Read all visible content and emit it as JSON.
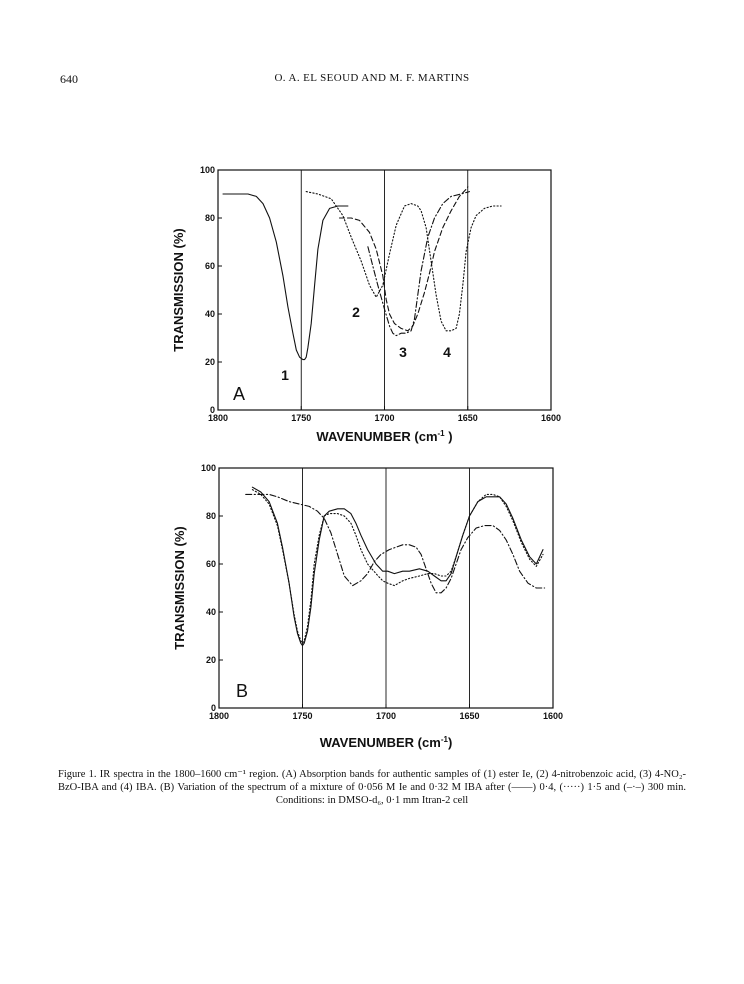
{
  "header": {
    "page_number": "640",
    "running_head": "O. A. EL SEOUD AND M. F. MARTINS"
  },
  "chart_data": [
    {
      "type": "line",
      "panel_label": "A",
      "xlabel": "WAVENUMBER (cm",
      "xlabel_sup": "-1",
      "xlabel_tail": " )",
      "ylabel": "TRANSMISSION (%)",
      "xlim": [
        1800,
        1600
      ],
      "ylim": [
        0,
        100
      ],
      "x_ticks": [
        "1800",
        "1750",
        "1700",
        "1650",
        "1600"
      ],
      "y_ticks": [
        "0",
        "20",
        "40",
        "60",
        "80",
        "100"
      ],
      "vertical_gridlines": [
        1750,
        1700,
        1650
      ],
      "series": [
        {
          "name": "1",
          "style": "solid",
          "x": [
            1797,
            1790,
            1782,
            1777,
            1773,
            1769,
            1765,
            1761,
            1758,
            1755,
            1753,
            1751,
            1749,
            1748,
            1747,
            1746,
            1744,
            1742,
            1740,
            1737,
            1733,
            1728,
            1722
          ],
          "y": [
            90,
            90,
            90,
            89,
            86,
            80,
            70,
            56,
            43,
            32,
            25,
            22,
            21,
            21,
            22,
            26,
            36,
            52,
            67,
            79,
            84,
            85,
            85
          ]
        },
        {
          "name": "2",
          "style": "dashed",
          "x": [
            1727,
            1720,
            1715,
            1709,
            1705,
            1701,
            1699,
            1697,
            1694,
            1690,
            1686,
            1683,
            1680,
            1676,
            1673,
            1670,
            1665,
            1660,
            1655,
            1651,
            1650
          ],
          "y": [
            80,
            80,
            79,
            74,
            67,
            56,
            46,
            40,
            36,
            34,
            33,
            35,
            40,
            49,
            57,
            66,
            76,
            83,
            89,
            92,
            93
          ]
        },
        {
          "name": "3",
          "style": "dash-dot",
          "x": [
            1710,
            1707,
            1704,
            1700,
            1697,
            1695,
            1693,
            1690,
            1687,
            1684,
            1682,
            1680,
            1678,
            1674,
            1670,
            1665,
            1660,
            1654,
            1649
          ],
          "y": [
            68,
            60,
            52,
            42,
            35,
            32,
            31,
            32,
            32,
            33,
            38,
            48,
            58,
            72,
            80,
            86,
            89,
            90,
            91
          ]
        },
        {
          "name": "4",
          "style": "dotted",
          "x": [
            1747,
            1740,
            1732,
            1725,
            1720,
            1714,
            1709,
            1705,
            1701,
            1697,
            1693,
            1688,
            1684,
            1680,
            1678,
            1675,
            1672,
            1669,
            1666,
            1663,
            1660,
            1657,
            1655,
            1653,
            1651,
            1648,
            1645,
            1640,
            1635,
            1630
          ],
          "y": [
            91,
            90,
            88,
            81,
            72,
            62,
            52,
            47,
            52,
            65,
            77,
            85,
            86,
            85,
            83,
            76,
            62,
            48,
            37,
            33,
            33,
            34,
            40,
            52,
            66,
            76,
            81,
            84,
            85,
            85
          ]
        }
      ],
      "annotations": [
        "1",
        "2",
        "3",
        "4"
      ]
    },
    {
      "type": "line",
      "panel_label": "B",
      "xlabel": "WAVENUMBER (cm",
      "xlabel_sup": "-1",
      "xlabel_tail": ")",
      "ylabel": "TRANSMISSION (%)",
      "xlim": [
        1800,
        1600
      ],
      "ylim": [
        0,
        100
      ],
      "x_ticks": [
        "1800",
        "1750",
        "1700",
        "1650",
        "1600"
      ],
      "y_ticks": [
        "0",
        "20",
        "40",
        "60",
        "80",
        "100"
      ],
      "vertical_gridlines": [
        1750,
        1700,
        1650
      ],
      "series": [
        {
          "style": "solid",
          "x": [
            1780,
            1775,
            1770,
            1765,
            1762,
            1758,
            1755,
            1753,
            1751,
            1750,
            1749,
            1747,
            1745,
            1743,
            1740,
            1737,
            1734,
            1729,
            1725,
            1721,
            1718,
            1715,
            1711,
            1706,
            1702,
            1699,
            1695,
            1690,
            1686,
            1680,
            1675,
            1671,
            1667,
            1664,
            1661,
            1658,
            1654,
            1650,
            1645,
            1640,
            1636,
            1632,
            1628,
            1624,
            1619,
            1614,
            1610,
            1606
          ],
          "y": [
            92,
            90,
            86,
            77,
            67,
            52,
            38,
            31,
            27,
            26,
            27,
            32,
            42,
            56,
            70,
            80,
            82,
            83,
            83,
            81,
            77,
            72,
            66,
            60,
            57,
            57,
            56,
            57,
            57,
            58,
            57,
            55,
            53,
            53,
            56,
            63,
            72,
            80,
            86,
            88,
            88,
            88,
            85,
            79,
            70,
            63,
            60,
            66
          ]
        },
        {
          "style": "dotted",
          "x": [
            1780,
            1775,
            1770,
            1765,
            1762,
            1758,
            1755,
            1753,
            1751,
            1750,
            1749,
            1747,
            1745,
            1743,
            1740,
            1737,
            1734,
            1729,
            1725,
            1721,
            1718,
            1715,
            1711,
            1706,
            1702,
            1699,
            1695,
            1690,
            1686,
            1680,
            1675,
            1671,
            1667,
            1664,
            1661,
            1658,
            1654,
            1650,
            1645,
            1640,
            1636,
            1632,
            1628,
            1624,
            1619,
            1614,
            1610,
            1606
          ],
          "y": [
            91,
            89,
            85,
            76,
            66,
            52,
            39,
            32,
            28,
            27,
            28,
            34,
            45,
            60,
            72,
            80,
            81,
            81,
            80,
            77,
            72,
            66,
            60,
            56,
            53,
            52,
            51,
            53,
            54,
            55,
            56,
            56,
            55,
            55,
            57,
            63,
            72,
            80,
            86,
            89,
            89,
            88,
            84,
            78,
            69,
            62,
            59,
            64
          ]
        },
        {
          "style": "dash-dot",
          "x": [
            1784,
            1776,
            1770,
            1765,
            1758,
            1752,
            1746,
            1741,
            1737,
            1733,
            1729,
            1725,
            1720,
            1715,
            1711,
            1707,
            1703,
            1698,
            1694,
            1690,
            1686,
            1682,
            1679,
            1676,
            1673,
            1670,
            1667,
            1664,
            1661,
            1658,
            1655,
            1651,
            1646,
            1641,
            1636,
            1632,
            1628,
            1624,
            1620,
            1615,
            1610,
            1605
          ],
          "y": [
            89,
            89,
            89,
            88,
            86,
            85,
            84,
            82,
            79,
            73,
            64,
            55,
            51,
            53,
            56,
            61,
            64,
            66,
            67,
            68,
            68,
            67,
            64,
            58,
            52,
            48,
            48,
            50,
            54,
            60,
            66,
            71,
            75,
            76,
            76,
            74,
            70,
            64,
            57,
            52,
            50,
            50
          ]
        }
      ],
      "annotations": []
    }
  ],
  "caption": {
    "text": "Figure 1. IR spectra in the 1800–1600 cm⁻¹ region. (A) Absorption bands for authentic samples of (1) ester Ie, (2) 4-nitrobenzoic acid, (3) 4-NO₂-BzO-IBA and (4) IBA. (B) Variation of the spectrum of a mixture of 0·056 M Ie and 0·32 M IBA after (——) 0·4, (·····) 1·5 and (–·–) 300 min. Conditions: in DMSO-d₆, 0·1 mm Itran-2 cell"
  }
}
